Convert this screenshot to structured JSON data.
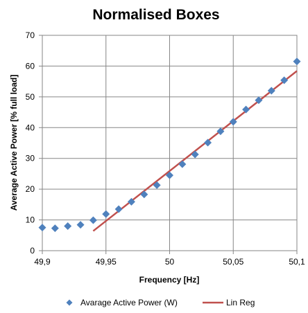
{
  "chart_data": {
    "type": "scatter",
    "title": "Normalised Boxes",
    "xlabel": "Frequency [Hz]",
    "ylabel": "Average Active Power [% full load]",
    "xlim": [
      49.9,
      50.1
    ],
    "ylim": [
      0,
      70
    ],
    "x_ticks": [
      49.9,
      49.95,
      50,
      50.05,
      50.1
    ],
    "x_tick_labels": [
      "49,9",
      "49,95",
      "50",
      "50,05",
      "50,1"
    ],
    "y_ticks": [
      0,
      10,
      20,
      30,
      40,
      50,
      60,
      70
    ],
    "y_tick_labels": [
      "0",
      "10",
      "20",
      "30",
      "40",
      "50",
      "60",
      "70"
    ],
    "grid": true,
    "legend_position": "bottom",
    "series": [
      {
        "name": "Avarage Active Power (W)",
        "kind": "scatter",
        "marker": "diamond",
        "color": "#4F81BD",
        "x": [
          49.9,
          49.91,
          49.92,
          49.93,
          49.94,
          49.95,
          49.96,
          49.97,
          49.98,
          49.99,
          50.0,
          50.01,
          50.02,
          50.03,
          50.04,
          50.05,
          50.06,
          50.07,
          50.08,
          50.09,
          50.1
        ],
        "y": [
          7.5,
          7.3,
          8.0,
          8.4,
          9.9,
          11.9,
          13.5,
          15.9,
          18.3,
          21.3,
          24.5,
          28.1,
          31.3,
          35.1,
          38.8,
          41.9,
          45.9,
          48.9,
          52.0,
          55.4,
          61.5
        ]
      },
      {
        "name": "Lin Reg",
        "kind": "line",
        "color": "#C0504D",
        "x": [
          49.94,
          50.1
        ],
        "y": [
          6.4,
          58.4
        ]
      }
    ]
  }
}
